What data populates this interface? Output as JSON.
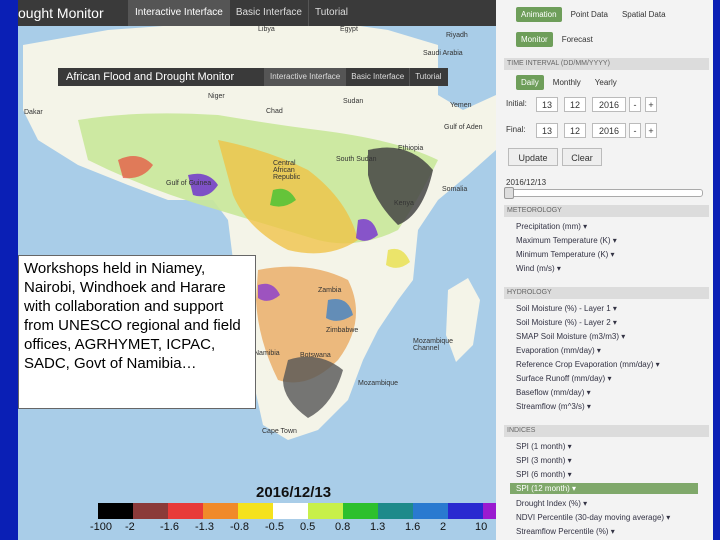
{
  "topnav": {
    "title": "ought Monitor",
    "tabs": [
      "Interactive Interface",
      "Basic Interface",
      "Tutorial"
    ]
  },
  "inner_nav": {
    "title": "African Flood and Drought Monitor",
    "tabs": [
      "Interactive Interface",
      "Basic Interface",
      "Tutorial"
    ]
  },
  "map_labels": [
    "Libya",
    "Egypt",
    "Riyadh",
    "Saudi Arabia",
    "Niger",
    "Chad",
    "Sudan",
    "Yemen",
    "Gulf of Aden",
    "Ethiopia",
    "Somalia",
    "Central African Republic",
    "South Sudan",
    "Kenya",
    "Gulf of Guinea",
    "Zambia",
    "Zimbabwe",
    "Namibia",
    "Botswana",
    "Mozambique Channel",
    "Dakar",
    "Cape Town",
    "Mozambique"
  ],
  "callout": "Workshops held in Niamey, Nairobi, Windhoek and Harare with collaboration and support from UNESCO regional and field offices, AGRHYMET, ICPAC, SADC, Govt of Namibia…",
  "map_date": "2016/12/13",
  "legend": {
    "colors": [
      "#000000",
      "#8b3a3a",
      "#e83a3a",
      "#f08a2a",
      "#f5e21c",
      "#ffffff",
      "#c8f04a",
      "#2dc02d",
      "#1e8a8a",
      "#2a7ad0",
      "#2a2ad0",
      "#9a1ad0"
    ],
    "ticks": [
      "-100",
      "-2",
      "-1.6",
      "-1.3",
      "-0.8",
      "-0.5",
      "0.5",
      "0.8",
      "1.3",
      "1.6",
      "2",
      "10"
    ]
  },
  "panel": {
    "mode_tabs": [
      "Animation",
      "Point Data",
      "Spatial Data"
    ],
    "sub_tabs": [
      "Monitor",
      "Forecast"
    ],
    "time_interval_label": "TIME INTERVAL (DD/MM/YYYY)",
    "interval_tabs": [
      "Daily",
      "Monthly",
      "Yearly"
    ],
    "initial": {
      "label": "Initial:",
      "day": "13",
      "month": "12",
      "year": "2016"
    },
    "final": {
      "label": "Final:",
      "day": "13",
      "month": "12",
      "year": "2016"
    },
    "update_label": "Update",
    "clear_label": "Clear",
    "current_date": "2016/12/13",
    "meteorology": {
      "title": "METEOROLOGY",
      "items": [
        "Precipitation (mm) ▾",
        "Maximum Temperature (K) ▾",
        "Minimum Temperature (K) ▾",
        "Wind (m/s) ▾"
      ]
    },
    "hydrology": {
      "title": "HYDROLOGY",
      "items": [
        "Soil Moisture (%) - Layer 1 ▾",
        "Soil Moisture (%) - Layer 2 ▾",
        "SMAP Soil Moisture (m3/m3) ▾",
        "Evaporation (mm/day) ▾",
        "Reference Crop Evaporation (mm/day) ▾",
        "Surface Runoff (mm/day) ▾",
        "Baseflow (mm/day) ▾",
        "Streamflow (m^3/s) ▾"
      ]
    },
    "indices": {
      "title": "INDICES",
      "items": [
        "SPI (1 month) ▾",
        "SPI (3 month) ▾",
        "SPI (6 month) ▾",
        "SPI (12 month) ▾",
        "Drought Index (%) ▾",
        "NDVI Percentile (30-day moving average) ▾",
        "Streamflow Percentile (%) ▾"
      ],
      "active_index": 3
    },
    "colors": {
      "accent": "#6e9e5a",
      "frame": "#0a1fb5"
    }
  }
}
